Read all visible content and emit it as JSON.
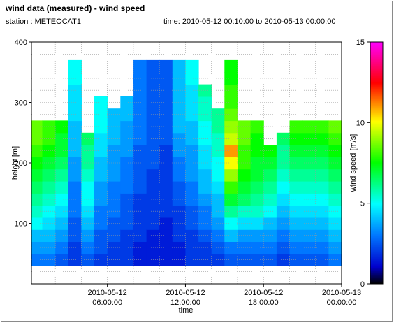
{
  "header": {
    "title": "wind data (measured) - wind speed",
    "station": "station : METEOCAT1",
    "time_range": "time: 2010-05-12 00:10:00 to 2010-05-13 00:00:00"
  },
  "chart_data": {
    "type": "heatmap",
    "xlabel": "time",
    "ylabel": "height [m]",
    "colorbar_label": "wind speed [m/s]",
    "xlim": [
      "2010-05-12 00:10:00",
      "2010-05-13 00:00:00"
    ],
    "ylim": [
      0,
      400
    ],
    "color_range": [
      0,
      15
    ],
    "x_ticks": [
      {
        "value": "2010-05-12 06:00:00",
        "line1": "2010-05-12",
        "line2": "06:00:00"
      },
      {
        "value": "2010-05-12 12:00:00",
        "line1": "2010-05-12",
        "line2": "12:00:00"
      },
      {
        "value": "2010-05-12 18:00:00",
        "line1": "2010-05-12",
        "line2": "18:00:00"
      },
      {
        "value": "2010-05-13 00:00:00",
        "line1": "2010-05-13",
        "line2": "00:00:00"
      }
    ],
    "y_ticks": [
      "100",
      "200",
      "300",
      "400"
    ],
    "colorbar_ticks": [
      "0",
      "5",
      "10",
      "15"
    ],
    "grid": true,
    "colormap": [
      "#000000",
      "#0000cc",
      "#0077ff",
      "#00ffff",
      "#00ff00",
      "#ffff00",
      "#ff0000",
      "#ff00ff"
    ],
    "height_levels_m": [
      40,
      60,
      80,
      100,
      120,
      140,
      160,
      180,
      200,
      220,
      240,
      260,
      280,
      300,
      320,
      340,
      360
    ],
    "series": [
      {
        "time": "2010-05-12 00:30",
        "top_m": 250,
        "speeds": [
          3,
          3.5,
          4,
          5,
          5.5,
          6,
          6.5,
          7,
          7.5,
          8,
          8.5,
          8.5,
          null,
          null,
          null,
          null,
          null
        ]
      },
      {
        "time": "2010-05-12 01:30",
        "top_m": 260,
        "speeds": [
          3,
          3.5,
          4,
          4.5,
          5,
          5.5,
          6,
          6.5,
          7,
          7.5,
          8,
          8,
          null,
          null,
          null,
          null,
          null
        ]
      },
      {
        "time": "2010-05-12 02:30",
        "top_m": 270,
        "speeds": [
          2.5,
          3,
          3.5,
          4,
          4.5,
          5,
          5.5,
          6,
          6.5,
          7,
          7,
          7.5,
          null,
          null,
          null,
          null,
          null
        ]
      },
      {
        "time": "2010-05-12 03:30",
        "top_m": 360,
        "speeds": [
          2,
          2,
          2.5,
          2.5,
          3,
          3,
          3,
          3.5,
          3.5,
          4,
          4,
          4,
          4.5,
          4.5,
          4.5,
          5,
          5
        ]
      },
      {
        "time": "2010-05-12 04:30",
        "top_m": 220,
        "speeds": [
          2.5,
          3,
          3.5,
          4,
          4.5,
          5,
          5,
          5.5,
          6,
          6,
          6.5,
          null,
          null,
          null,
          null,
          null,
          null
        ]
      },
      {
        "time": "2010-05-12 05:30",
        "top_m": 320,
        "speeds": [
          2,
          2.5,
          2.5,
          3,
          3,
          3.5,
          3.5,
          4,
          4,
          4.5,
          4.5,
          5,
          5,
          5,
          null,
          null,
          null
        ]
      },
      {
        "time": "2010-05-12 06:30",
        "top_m": 300,
        "speeds": [
          2,
          2,
          2.5,
          2.5,
          3,
          3,
          3,
          3.5,
          3.5,
          3.5,
          4,
          4,
          4,
          null,
          null,
          null,
          null
        ]
      },
      {
        "time": "2010-05-12 07:30",
        "top_m": 310,
        "speeds": [
          2,
          2,
          2,
          2.5,
          2.5,
          2.5,
          3,
          3,
          3,
          3.5,
          3.5,
          3.5,
          4,
          4,
          null,
          null,
          null
        ]
      },
      {
        "time": "2010-05-12 08:30",
        "top_m": 360,
        "speeds": [
          1.5,
          1.5,
          2,
          2,
          2,
          2,
          2.5,
          2.5,
          2.5,
          2.5,
          3,
          3,
          3,
          3,
          3,
          3,
          3
        ]
      },
      {
        "time": "2010-05-12 09:30",
        "top_m": 360,
        "speeds": [
          1.5,
          1.5,
          1.5,
          2,
          2,
          2,
          2,
          2,
          2.5,
          2.5,
          2.5,
          2.5,
          2.5,
          2.5,
          2.5,
          2.5,
          2.5
        ]
      },
      {
        "time": "2010-05-12 10:30",
        "top_m": 360,
        "speeds": [
          1.5,
          1.5,
          1.5,
          1.5,
          2,
          2,
          2,
          2,
          2,
          2,
          2.5,
          2.5,
          2.5,
          2.5,
          2.5,
          2.5,
          2.5
        ]
      },
      {
        "time": "2010-05-12 11:30",
        "top_m": 360,
        "speeds": [
          1.5,
          1.5,
          2,
          2,
          2,
          2.5,
          2.5,
          3,
          3,
          3.5,
          3.5,
          4,
          4,
          4,
          4,
          4,
          4
        ]
      },
      {
        "time": "2010-05-12 12:30",
        "top_m": 360,
        "speeds": [
          2,
          2,
          2,
          2.5,
          2.5,
          3,
          3,
          3.5,
          3.5,
          3.5,
          4,
          4,
          4.5,
          4.5,
          4.5,
          5,
          5
        ]
      },
      {
        "time": "2010-05-12 13:30",
        "top_m": 330,
        "speeds": [
          2,
          2,
          2.5,
          3,
          3,
          3.5,
          4,
          4,
          4.5,
          4.5,
          5,
          5,
          5.5,
          5.5,
          6,
          null,
          null
        ]
      },
      {
        "time": "2010-05-12 14:30",
        "top_m": 300,
        "speeds": [
          2,
          2.5,
          3,
          3.5,
          4,
          4,
          4.5,
          5,
          5,
          5.5,
          5.5,
          6,
          6,
          null,
          null,
          null,
          null
        ]
      },
      {
        "time": "2010-05-12 15:30",
        "top_m": 370,
        "speeds": [
          2.5,
          3,
          4,
          5,
          6,
          7,
          8,
          9,
          10,
          11,
          9.5,
          9,
          8.5,
          8,
          8,
          7.5,
          7.5
        ]
      },
      {
        "time": "2010-05-12 16:30",
        "top_m": 280,
        "speeds": [
          2.5,
          3,
          3.5,
          4.5,
          5.5,
          6.5,
          7,
          7.5,
          8,
          8,
          8.5,
          8.5,
          null,
          null,
          null,
          null,
          null
        ]
      },
      {
        "time": "2010-05-12 17:30",
        "top_m": 260,
        "speeds": [
          2.5,
          3,
          3.5,
          4.5,
          5.5,
          6,
          6.5,
          7,
          7,
          7.5,
          7.5,
          8,
          null,
          null,
          null,
          null,
          null
        ]
      },
      {
        "time": "2010-05-12 18:30",
        "top_m": 200,
        "speeds": [
          2.5,
          3,
          3.5,
          4,
          5,
          5.5,
          6,
          6.5,
          7,
          7.5,
          null,
          null,
          null,
          null,
          null,
          null,
          null
        ]
      },
      {
        "time": "2010-05-12 19:30",
        "top_m": 240,
        "speeds": [
          2,
          2.5,
          3,
          3.5,
          4,
          4.5,
          5,
          5.5,
          6,
          6,
          6.5,
          null,
          null,
          null,
          null,
          null,
          null
        ]
      },
      {
        "time": "2010-05-12 20:30",
        "top_m": 280,
        "speeds": [
          2.5,
          3,
          3.5,
          4,
          4.5,
          5,
          5.5,
          6,
          6.5,
          7,
          7.5,
          8,
          null,
          null,
          null,
          null,
          null
        ]
      },
      {
        "time": "2010-05-12 21:30",
        "top_m": 250,
        "speeds": [
          2.5,
          3,
          3.5,
          4,
          4.5,
          5,
          5.5,
          6,
          6.5,
          7,
          7.5,
          8,
          null,
          null,
          null,
          null,
          null
        ]
      },
      {
        "time": "2010-05-12 22:30",
        "top_m": 260,
        "speeds": [
          2.5,
          3,
          3.5,
          4,
          4.5,
          5,
          5.5,
          6,
          6.5,
          7,
          7.5,
          8,
          null,
          null,
          null,
          null,
          null
        ]
      },
      {
        "time": "2010-05-12 23:30",
        "top_m": 280,
        "speeds": [
          3,
          3.5,
          4,
          4.5,
          5,
          5.5,
          6,
          6.5,
          7,
          7.5,
          8,
          8.5,
          null,
          null,
          null,
          null,
          null
        ]
      }
    ]
  }
}
